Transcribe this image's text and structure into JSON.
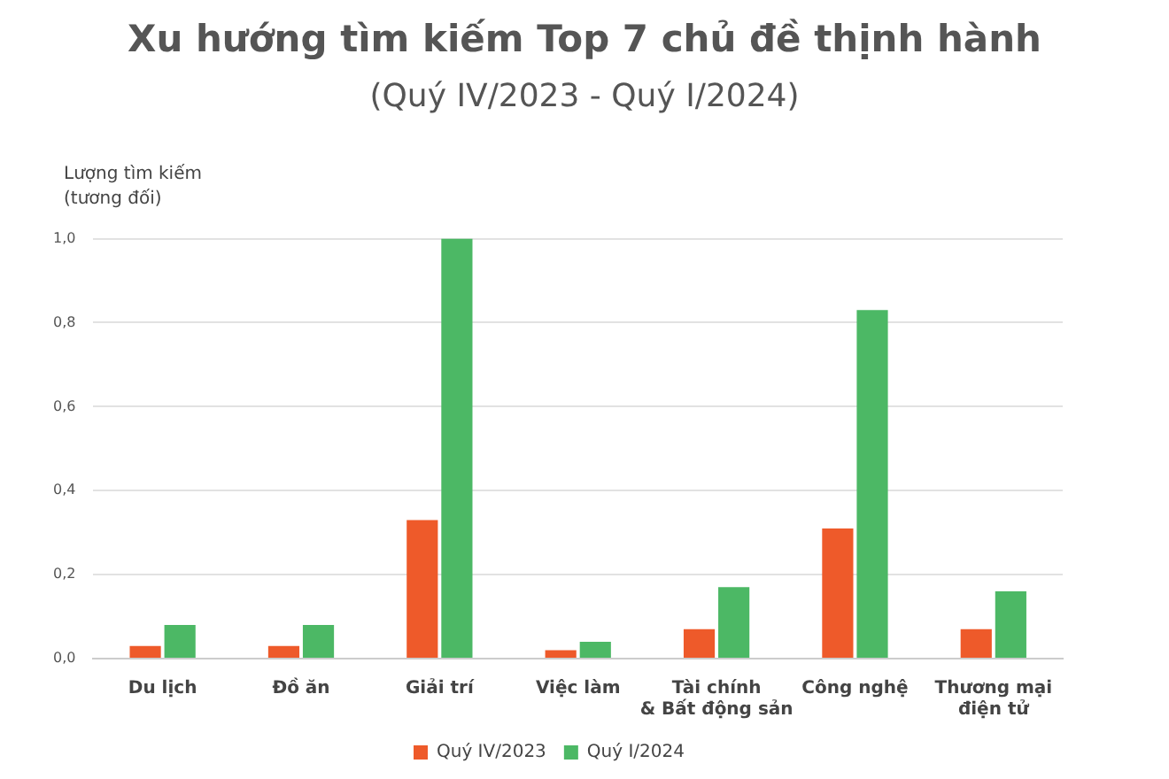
{
  "chart_data": {
    "type": "bar",
    "title": "Xu hướng tìm kiếm Top 7 chủ đề thịnh hành",
    "subtitle": "(Quý IV/2023 - Quý I/2024)",
    "ylabel": "Lượng tìm kiếm\n(tương đối)",
    "categories": [
      "Du lịch",
      "Đồ ăn",
      "Giải trí",
      "Việc làm",
      "Tài chính\n& Bất động sản",
      "Công nghệ",
      "Thương mại\nđiện tử"
    ],
    "series": [
      {
        "name": "Quý IV/2023",
        "color": "#ee5a2a",
        "values": [
          0.03,
          0.03,
          0.33,
          0.02,
          0.07,
          0.31,
          0.07
        ]
      },
      {
        "name": "Quý I/2024",
        "color": "#4cb865",
        "values": [
          0.08,
          0.08,
          1.0,
          0.04,
          0.17,
          0.83,
          0.16
        ]
      }
    ],
    "ylim": [
      0,
      1
    ],
    "yticks": [
      {
        "value": 0,
        "label": "0,0"
      },
      {
        "value": 0.2,
        "label": "0,2"
      },
      {
        "value": 0.4,
        "label": "0,4"
      },
      {
        "value": 0.6,
        "label": "0,6"
      },
      {
        "value": 0.8,
        "label": "0,8"
      },
      {
        "value": 1,
        "label": "1,0"
      }
    ],
    "grid": "y",
    "legend": "bottom"
  }
}
